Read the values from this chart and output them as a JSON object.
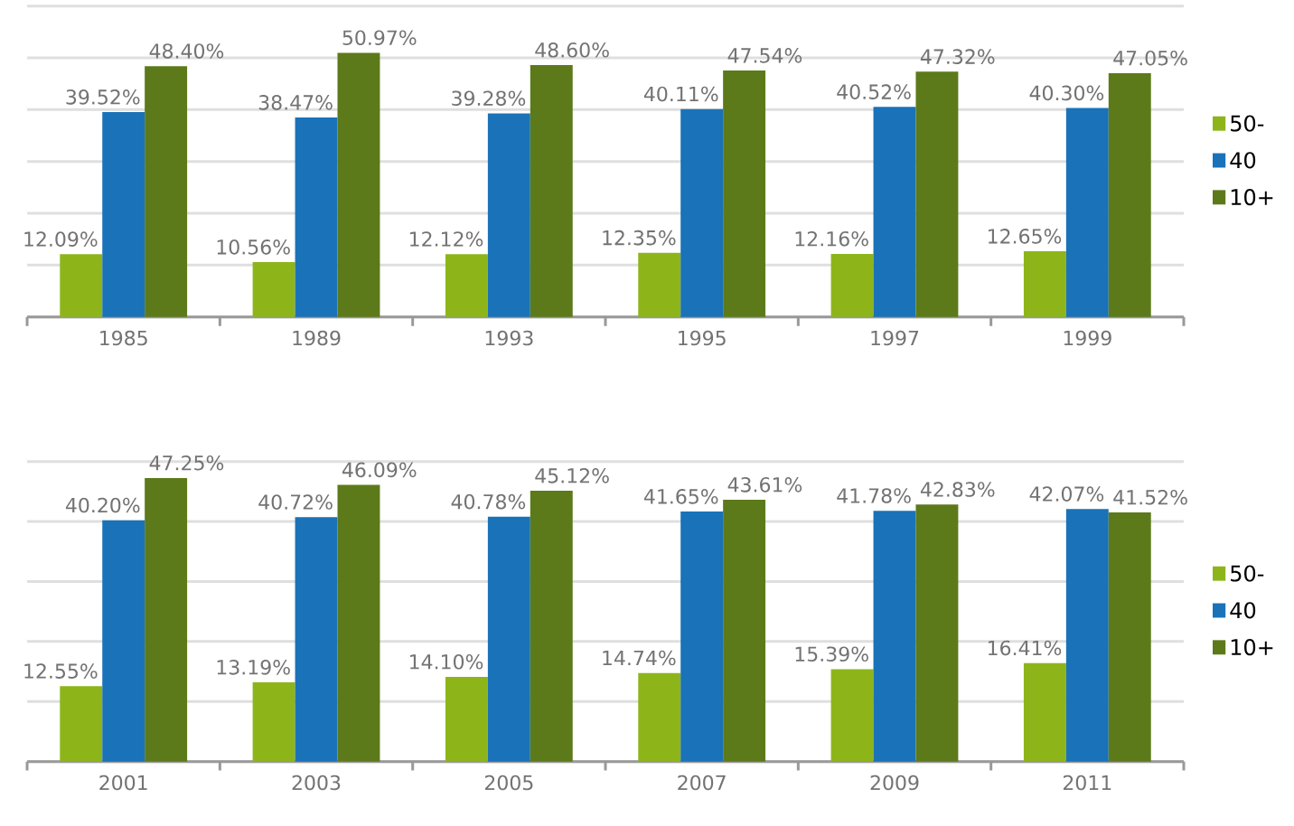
{
  "chart_data": [
    {
      "type": "bar",
      "categories": [
        "1985",
        "1989",
        "1993",
        "1995",
        "1997",
        "1999"
      ],
      "series": [
        {
          "name": "50-",
          "color": "#8db51a",
          "values": [
            12.09,
            10.56,
            12.12,
            12.35,
            12.16,
            12.65
          ],
          "value_labels": [
            "12.09%",
            "10.56%",
            "12.12%",
            "12.35%",
            "12.16%",
            "12.65%"
          ]
        },
        {
          "name": "40",
          "color": "#1a72b8",
          "values": [
            39.52,
            38.47,
            39.28,
            40.11,
            40.52,
            40.3
          ],
          "value_labels": [
            "39.52%",
            "38.47%",
            "39.28%",
            "40.11%",
            "40.52%",
            "40.30%"
          ]
        },
        {
          "name": "10+",
          "color": "#5c7a1a",
          "values": [
            48.4,
            50.97,
            48.6,
            47.54,
            47.32,
            47.05
          ],
          "value_labels": [
            "48.40%",
            "50.97%",
            "48.60%",
            "47.54%",
            "47.32%",
            "47.05%"
          ]
        }
      ],
      "ylim": [
        0,
        60
      ],
      "yticks": [
        {
          "value": 0,
          "label": null
        },
        {
          "value": 10,
          "label": null
        },
        {
          "value": 20,
          "label": null
        },
        {
          "value": 30,
          "label": null
        },
        {
          "value": 40,
          "label": null
        },
        {
          "value": 50,
          "label": null
        },
        {
          "value": 60,
          "label": null
        }
      ],
      "tick_labels": "x",
      "grid": "y",
      "legend": "right"
    },
    {
      "type": "bar",
      "categories": [
        "2001",
        "2003",
        "2005",
        "2007",
        "2009",
        "2011"
      ],
      "series": [
        {
          "name": "50-",
          "color": "#8db51a",
          "values": [
            12.55,
            13.19,
            14.1,
            14.74,
            15.39,
            16.41
          ],
          "value_labels": [
            "12.55%",
            "13.19%",
            "14.10%",
            "14.74%",
            "15.39%",
            "16.41%"
          ]
        },
        {
          "name": "40",
          "color": "#1a72b8",
          "values": [
            40.2,
            40.72,
            40.78,
            41.65,
            41.78,
            42.07
          ],
          "value_labels": [
            "40.20%",
            "40.72%",
            "40.78%",
            "41.65%",
            "41.78%",
            "42.07%"
          ]
        },
        {
          "name": "10+",
          "color": "#5c7a1a",
          "values": [
            47.25,
            46.09,
            45.12,
            43.61,
            42.83,
            41.52
          ],
          "value_labels": [
            "47.25%",
            "46.09%",
            "45.12%",
            "43.61%",
            "42.83%",
            "41.52%"
          ]
        }
      ],
      "ylim": [
        0,
        50
      ],
      "yticks": [
        {
          "value": 0,
          "label": null
        },
        {
          "value": 10,
          "label": null
        },
        {
          "value": 20,
          "label": null
        },
        {
          "value": 30,
          "label": null
        },
        {
          "value": 40,
          "label": null
        },
        {
          "value": 50,
          "label": null
        }
      ],
      "tick_labels": "x",
      "grid": "y",
      "legend": "right"
    }
  ]
}
